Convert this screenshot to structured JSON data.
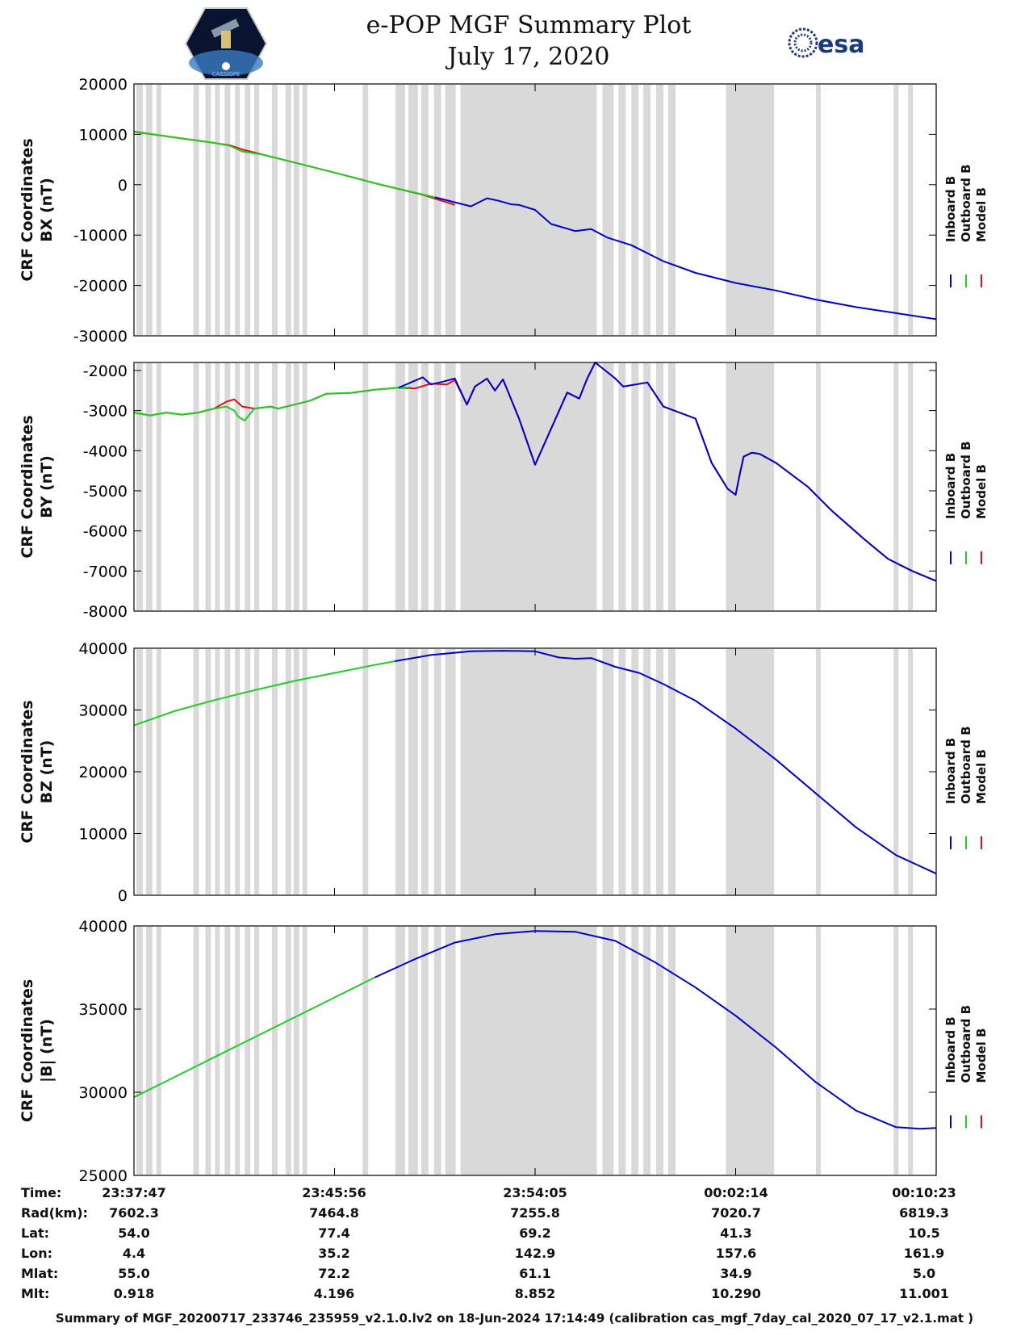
{
  "header": {
    "title_line1": "e-POP MGF Summary Plot",
    "title_line2": "July 17, 2020",
    "logo_left": "CASSIOPE",
    "logo_right": "esa"
  },
  "legend": [
    {
      "label": "Inboard B",
      "color": "#0000cc"
    },
    {
      "label": "Outboard B",
      "color": "#22cc22"
    },
    {
      "label": "Model B",
      "color": "#dd1111"
    }
  ],
  "gaps": [
    [
      0.3,
      1.1
    ],
    [
      1.5,
      2.3
    ],
    [
      2.8,
      3.4
    ],
    [
      7.4,
      8.1
    ],
    [
      8.9,
      9.6
    ],
    [
      10.1,
      10.7
    ],
    [
      11.3,
      12.0
    ],
    [
      12.6,
      13.2
    ],
    [
      13.8,
      14.5
    ],
    [
      15.0,
      15.6
    ],
    [
      17.2,
      17.9
    ],
    [
      18.9,
      19.6
    ],
    [
      19.9,
      20.6
    ],
    [
      21.0,
      21.6
    ],
    [
      28.5,
      29.2
    ],
    [
      32.6,
      33.8
    ],
    [
      34.2,
      35.4
    ],
    [
      35.8,
      36.7
    ],
    [
      37.4,
      38.3
    ],
    [
      38.8,
      40.1
    ],
    [
      40.7,
      57.7
    ],
    [
      58.4,
      59.8
    ],
    [
      60.4,
      61.3
    ],
    [
      62.0,
      62.9
    ],
    [
      63.5,
      64.4
    ],
    [
      65.1,
      66.0
    ],
    [
      66.6,
      67.5
    ],
    [
      73.8,
      79.8
    ],
    [
      85.0,
      85.6
    ],
    [
      94.7,
      95.3
    ],
    [
      96.5,
      97.1
    ]
  ],
  "chart_data": [
    {
      "type": "line",
      "ylabel_line1": "CRF Coordinates",
      "ylabel_line2": "BX (nT)",
      "ylim": [
        -30000,
        20000
      ],
      "yticks": [
        -30000,
        -20000,
        -10000,
        0,
        10000,
        20000
      ],
      "ytick_labels": [
        "-30000",
        "-20000",
        "-10000",
        "0",
        "10000",
        "20000"
      ],
      "xlim": [
        0,
        100
      ],
      "series": [
        {
          "name": "Model B",
          "x": [
            0,
            5,
            10,
            12,
            13.5,
            16,
            20,
            26,
            30,
            36,
            40
          ],
          "y": [
            10500,
            9400,
            8300,
            7800,
            7000,
            6000,
            4400,
            2000,
            300,
            -2000,
            -4000
          ]
        },
        {
          "name": "Outboard B",
          "x": [
            0,
            5,
            10,
            12,
            13.5,
            16,
            20,
            26,
            30,
            37.5
          ],
          "y": [
            10600,
            9400,
            8300,
            7700,
            6600,
            6000,
            4400,
            2000,
            300,
            -2500
          ]
        },
        {
          "name": "Inboard B",
          "x": [
            37.5,
            40,
            42,
            44,
            45.5,
            47,
            48,
            50,
            52,
            55,
            57,
            59,
            62,
            66,
            70,
            75,
            80,
            85,
            90,
            95,
            100
          ],
          "y": [
            -2500,
            -3500,
            -4300,
            -2700,
            -3200,
            -3900,
            -4000,
            -5000,
            -7800,
            -9200,
            -8800,
            -10500,
            -12000,
            -15200,
            -17500,
            -19500,
            -21000,
            -22800,
            -24300,
            -25500,
            -26700
          ]
        }
      ]
    },
    {
      "type": "line",
      "ylabel_line1": "CRF Coordinates",
      "ylabel_line2": "BY (nT)",
      "ylim": [
        -8000,
        -1800
      ],
      "yticks": [
        -8000,
        -7000,
        -6000,
        -5000,
        -4000,
        -3000,
        -2000
      ],
      "ytick_labels": [
        "-8000",
        "-7000",
        "-6000",
        "-5000",
        "-4000",
        "-3000",
        "-2000"
      ],
      "xlim": [
        0,
        100
      ],
      "series": [
        {
          "name": "Model B",
          "x": [
            0,
            2,
            4,
            6,
            8,
            10,
            11.5,
            12.5,
            13.5,
            15,
            17,
            18,
            20,
            22,
            24,
            27,
            30,
            33,
            35,
            37,
            39,
            40,
            41.5,
            42.5,
            44,
            45,
            46,
            48,
            50,
            54,
            55.5,
            56.5,
            57.5,
            60,
            61,
            64,
            66,
            68,
            70,
            72,
            74,
            75,
            75.5,
            76,
            77,
            78,
            80,
            84,
            87,
            91,
            94,
            97,
            100
          ],
          "y": [
            -3050,
            -3120,
            -3050,
            -3100,
            -3050,
            -2950,
            -2780,
            -2720,
            -2900,
            -2950,
            -2900,
            -2950,
            -2850,
            -2750,
            -2580,
            -2560,
            -2480,
            -2430,
            -2450,
            -2330,
            -2350,
            -2240,
            -2850,
            -2400,
            -2200,
            -2500,
            -2220,
            -3200,
            -4350,
            -2550,
            -2700,
            -2200,
            -1800,
            -2200,
            -2400,
            -2300,
            -2900,
            -3050,
            -3200,
            -4300,
            -4950,
            -5100,
            -4600,
            -4150,
            -4050,
            -4080,
            -4300,
            -4900,
            -5500,
            -6200,
            -6700,
            -7000,
            -7250
          ]
        },
        {
          "name": "Outboard B",
          "x": [
            0,
            2,
            4,
            6,
            8,
            10,
            11.5,
            12.5,
            13,
            13.8,
            15,
            17,
            18,
            20,
            22,
            24,
            27,
            30,
            33,
            34.5
          ],
          "y": [
            -3050,
            -3120,
            -3050,
            -3100,
            -3050,
            -2950,
            -2900,
            -3000,
            -3150,
            -3250,
            -2950,
            -2900,
            -2950,
            -2850,
            -2750,
            -2580,
            -2560,
            -2480,
            -2430,
            -2420
          ]
        },
        {
          "name": "Inboard B",
          "x": [
            33,
            34.5,
            36,
            37,
            38.5,
            40,
            41.5,
            42.5,
            44,
            45,
            46,
            48,
            50,
            54,
            55.5,
            56.5,
            57.5,
            60,
            61,
            64,
            66,
            68,
            70,
            72,
            74,
            75,
            75.5,
            76,
            77,
            78,
            80,
            84,
            87,
            91,
            94,
            97,
            100
          ],
          "y": [
            -2430,
            -2300,
            -2170,
            -2350,
            -2280,
            -2200,
            -2850,
            -2400,
            -2200,
            -2500,
            -2220,
            -3200,
            -4350,
            -2550,
            -2700,
            -2200,
            -1800,
            -2200,
            -2400,
            -2300,
            -2900,
            -3050,
            -3200,
            -4300,
            -4950,
            -5100,
            -4600,
            -4150,
            -4050,
            -4080,
            -4300,
            -4900,
            -5500,
            -6200,
            -6700,
            -7000,
            -7250
          ]
        }
      ]
    },
    {
      "type": "line",
      "ylabel_line1": "CRF Coordinates",
      "ylabel_line2": "BZ (nT)",
      "ylim": [
        0,
        40000
      ],
      "yticks": [
        0,
        10000,
        20000,
        30000,
        40000
      ],
      "ytick_labels": [
        "0",
        "10000",
        "20000",
        "30000",
        "40000"
      ],
      "xlim": [
        0,
        100
      ],
      "series": [
        {
          "name": "Outboard B",
          "x": [
            0,
            5,
            10,
            15,
            20,
            25,
            30,
            32.5
          ],
          "y": [
            27500,
            29800,
            31600,
            33200,
            34700,
            36000,
            37300,
            37900
          ]
        },
        {
          "name": "Inboard B",
          "x": [
            32.5,
            37,
            42,
            46,
            50,
            53,
            55,
            57,
            60,
            63,
            66,
            70,
            75,
            80,
            85,
            90,
            95,
            100
          ],
          "y": [
            37900,
            38900,
            39500,
            39600,
            39500,
            38500,
            38300,
            38400,
            37000,
            36000,
            34200,
            31500,
            27000,
            22000,
            16500,
            11000,
            6500,
            3500
          ]
        }
      ]
    },
    {
      "type": "line",
      "ylabel_line1": "CRF Coordinates",
      "ylabel_line2": "|B| (nT)",
      "ylim": [
        25000,
        40000
      ],
      "yticks": [
        25000,
        30000,
        35000,
        40000
      ],
      "ytick_labels": [
        "25000",
        "30000",
        "35000",
        "40000"
      ],
      "xlim": [
        0,
        100
      ],
      "series": [
        {
          "name": "Outboard B",
          "x": [
            0,
            5,
            10,
            15,
            20,
            25,
            30
          ],
          "y": [
            29700,
            30900,
            32100,
            33300,
            34500,
            35700,
            36900
          ]
        },
        {
          "name": "Inboard B",
          "x": [
            30,
            35,
            40,
            45,
            50,
            55,
            60,
            65,
            70,
            75,
            80,
            85,
            90,
            95,
            98,
            100
          ],
          "y": [
            36900,
            38000,
            39000,
            39500,
            39700,
            39650,
            39100,
            37800,
            36300,
            34600,
            32700,
            30600,
            28900,
            27900,
            27800,
            27850
          ]
        }
      ]
    }
  ],
  "time_table": {
    "row_labels": [
      "Time:",
      "Rad(km):",
      "Lat:",
      "Lon:",
      "Mlat:",
      "Mlt:"
    ],
    "columns": [
      [
        "23:37:47",
        "7602.3",
        "54.0",
        "4.4",
        "55.0",
        "0.918"
      ],
      [
        "23:45:56",
        "7464.8",
        "77.4",
        "35.2",
        "72.2",
        "4.196"
      ],
      [
        "23:54:05",
        "7255.8",
        "69.2",
        "142.9",
        "61.1",
        "8.852"
      ],
      [
        "00:02:14",
        "7020.7",
        "41.3",
        "157.6",
        "34.9",
        "10.290"
      ],
      [
        "00:10:23",
        "6819.3",
        "10.5",
        "161.9",
        "5.0",
        "11.001"
      ]
    ]
  },
  "footer": "Summary of MGF_20200717_233746_235959_v2.1.0.lv2 on 18-Jun-2024 17:14:49 (calibration cas_mgf_7day_cal_2020_07_17_v2.1.mat )"
}
